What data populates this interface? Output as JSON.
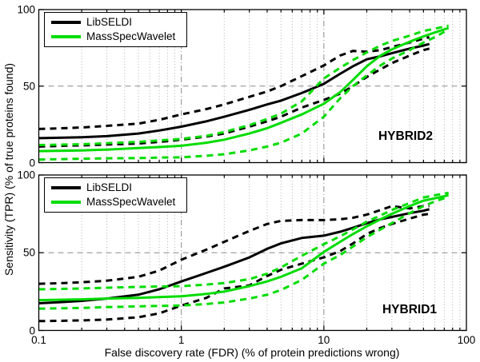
{
  "figure": {
    "xlabel": "False discovery rate (FDR) (% of protein predictions wrong)",
    "ylabel": "Sensitivity (TPR) (% of true proteins found)",
    "x_ticks": [
      "0.1",
      "1",
      "10",
      "100"
    ],
    "x_tick_values": [
      0.1,
      1,
      10,
      100
    ],
    "y_ticks": [
      "0",
      "50",
      "100"
    ],
    "y_tick_values": [
      0,
      50,
      100
    ],
    "colors": {
      "black_series": "#000000",
      "green_series": "#00dc00",
      "grid_minor": "#b0b0b0",
      "grid_major": "#8c8c8c",
      "axis": "#000000",
      "background": "#ffffff"
    }
  },
  "legend": {
    "items": [
      {
        "label": "LibSELDI",
        "color": "#000000"
      },
      {
        "label": "MassSpecWavelet",
        "color": "#00dc00"
      }
    ]
  },
  "chart_data": [
    {
      "type": "line",
      "panel_label": "HYBRID2",
      "x_scale": "log",
      "xlim": [
        0.1,
        100
      ],
      "ylim": [
        0,
        100
      ],
      "grid": "minor dotted vertical; dash-dot major vertical at 1 and 10; dashed horizontal at 50",
      "x_gridlines_major": [
        1,
        10
      ],
      "y_gridline_dashed": 50,
      "legend_position": "top-left",
      "series": [
        {
          "name": "LibSELDI mean",
          "color": "#000000",
          "dash": "solid",
          "x": [
            0.1,
            0.15,
            0.2,
            0.3,
            0.5,
            0.7,
            1,
            1.5,
            2,
            3,
            4,
            5,
            7,
            10,
            13,
            16,
            20,
            25,
            30,
            40,
            50,
            55
          ],
          "y": [
            16,
            16.3,
            16.6,
            17.3,
            19,
            21,
            23.5,
            27,
            30,
            34.5,
            38,
            40.5,
            45.5,
            51.5,
            58,
            63,
            67.5,
            69.5,
            71.5,
            74.5,
            76.5,
            77.5
          ]
        },
        {
          "name": "LibSELDI upper bound",
          "color": "#000000",
          "dash": "dashed",
          "x": [
            0.1,
            0.15,
            0.2,
            0.3,
            0.5,
            0.7,
            1,
            1.5,
            2,
            3,
            4,
            5,
            7,
            10,
            13,
            16,
            20,
            25,
            30,
            40,
            50,
            55
          ],
          "y": [
            22,
            22.5,
            23,
            24,
            25.5,
            28,
            31.5,
            35,
            38,
            43,
            46.5,
            50,
            56.5,
            63.5,
            70,
            73,
            72.5,
            73.5,
            75.5,
            78.5,
            81,
            82
          ]
        },
        {
          "name": "LibSELDI lower bound",
          "color": "#000000",
          "dash": "dashed",
          "x": [
            0.1,
            0.15,
            0.2,
            0.3,
            0.5,
            0.7,
            1,
            1.5,
            2,
            3,
            4,
            5,
            7,
            10,
            13,
            16,
            20,
            25,
            30,
            40,
            50,
            55
          ],
          "y": [
            10.5,
            11,
            11.3,
            11.8,
            12.5,
            13.5,
            15,
            17,
            19,
            23.5,
            27,
            30,
            36,
            41,
            45,
            50,
            56,
            61,
            65,
            70,
            73.5,
            74.5
          ]
        },
        {
          "name": "MassSpecWavelet mean",
          "color": "#00dc00",
          "dash": "solid",
          "x": [
            0.1,
            0.15,
            0.2,
            0.3,
            0.5,
            0.7,
            1,
            1.5,
            2,
            3,
            4,
            5,
            7,
            10,
            13,
            16,
            20,
            25,
            30,
            40,
            50,
            60,
            75
          ],
          "y": [
            7.5,
            7.8,
            8,
            8.5,
            9.5,
            10.2,
            11,
            13,
            15,
            19,
            22.5,
            26,
            31.5,
            38.5,
            46,
            54,
            63,
            70,
            74,
            79,
            82.5,
            85,
            88
          ]
        },
        {
          "name": "MassSpecWavelet upper bound",
          "color": "#00dc00",
          "dash": "dashed",
          "x": [
            0.1,
            0.15,
            0.2,
            0.3,
            0.5,
            0.7,
            1,
            1.5,
            2,
            3,
            4,
            5,
            7,
            10,
            13,
            16,
            20,
            25,
            30,
            40,
            50,
            60,
            75
          ],
          "y": [
            11.5,
            11.8,
            12,
            12.7,
            13.5,
            14.5,
            15.5,
            17.5,
            20,
            24.5,
            28.5,
            32,
            40,
            55,
            62,
            67,
            72,
            76.5,
            79.5,
            83,
            86,
            87.5,
            89.5
          ]
        },
        {
          "name": "MassSpecWavelet lower bound",
          "color": "#00dc00",
          "dash": "dashed",
          "x": [
            0.1,
            0.15,
            0.2,
            0.3,
            0.5,
            0.7,
            1,
            1.5,
            2,
            3,
            4,
            5,
            7,
            10,
            13,
            16,
            20,
            25,
            30,
            40,
            50,
            60,
            75
          ],
          "y": [
            2,
            2.3,
            2.5,
            2.8,
            3,
            3.3,
            3.5,
            4.5,
            5.5,
            8,
            10.5,
            13,
            19,
            30,
            42,
            50,
            57,
            63.5,
            68,
            73.5,
            78.5,
            82,
            87
          ]
        }
      ]
    },
    {
      "type": "line",
      "panel_label": "HYBRID1",
      "x_scale": "log",
      "xlim": [
        0.1,
        100
      ],
      "ylim": [
        0,
        100
      ],
      "grid": "minor dotted vertical; dash-dot major vertical at 1 and 10; dashed horizontal at 50",
      "x_gridlines_major": [
        1,
        10
      ],
      "y_gridline_dashed": 50,
      "legend_position": "top-left",
      "series": [
        {
          "name": "LibSELDI mean",
          "color": "#000000",
          "dash": "solid",
          "x": [
            0.1,
            0.15,
            0.2,
            0.3,
            0.5,
            0.7,
            1,
            1.5,
            2,
            3,
            4,
            5,
            7,
            10,
            13,
            16,
            20,
            25,
            30,
            40,
            50,
            55
          ],
          "y": [
            17.5,
            18.3,
            19,
            20.5,
            23,
            26.5,
            31.5,
            37,
            41,
            47,
            52.5,
            56,
            59.5,
            61,
            63.5,
            66,
            69,
            71.5,
            73,
            75.5,
            77,
            78
          ]
        },
        {
          "name": "LibSELDI upper bound",
          "color": "#000000",
          "dash": "dashed",
          "x": [
            0.1,
            0.15,
            0.2,
            0.3,
            0.5,
            0.7,
            1,
            1.5,
            2,
            3,
            4,
            5,
            7,
            10,
            13,
            16,
            20,
            25,
            30,
            40,
            50,
            55
          ],
          "y": [
            30,
            30.5,
            31,
            32,
            34.5,
            38.5,
            45.5,
            52,
            57,
            64,
            68.5,
            70.5,
            71,
            71,
            71.5,
            72.5,
            74.5,
            77.5,
            80,
            78.5,
            80,
            80
          ]
        },
        {
          "name": "LibSELDI lower bound",
          "color": "#000000",
          "dash": "dashed",
          "x": [
            0.1,
            0.15,
            0.2,
            0.3,
            0.5,
            0.7,
            1,
            1.5,
            2,
            3,
            4,
            5,
            7,
            10,
            13,
            16,
            20,
            25,
            30,
            40,
            50,
            55
          ],
          "y": [
            6,
            6.2,
            6.5,
            7,
            8.5,
            11,
            16,
            21,
            27,
            29,
            35,
            39,
            43,
            47,
            51,
            56,
            62,
            66,
            68.5,
            72,
            74.5,
            75
          ]
        },
        {
          "name": "MassSpecWavelet mean",
          "color": "#00dc00",
          "dash": "solid",
          "x": [
            0.1,
            0.15,
            0.2,
            0.3,
            0.5,
            0.7,
            1,
            1.5,
            2,
            3,
            4,
            5,
            7,
            10,
            13,
            16,
            20,
            25,
            30,
            40,
            50,
            60,
            75
          ],
          "y": [
            19.5,
            19.8,
            20,
            20.5,
            21,
            21.5,
            22,
            23.5,
            25,
            28.5,
            31.5,
            34.5,
            40,
            50.5,
            57,
            62,
            67,
            71.5,
            75,
            80,
            83.5,
            85,
            87
          ]
        },
        {
          "name": "MassSpecWavelet upper bound",
          "color": "#00dc00",
          "dash": "dashed",
          "x": [
            0.1,
            0.15,
            0.2,
            0.3,
            0.5,
            0.7,
            1,
            1.5,
            2,
            3,
            4,
            5,
            7,
            10,
            13,
            16,
            20,
            25,
            30,
            40,
            50,
            60,
            75
          ],
          "y": [
            26.5,
            26.8,
            27,
            27.5,
            28,
            28.3,
            28.5,
            29.5,
            30.5,
            33,
            36.5,
            40.5,
            48,
            55.5,
            60.5,
            65,
            70,
            74,
            77.5,
            82,
            85.5,
            87,
            88.5
          ]
        },
        {
          "name": "MassSpecWavelet lower bound",
          "color": "#00dc00",
          "dash": "dashed",
          "x": [
            0.1,
            0.15,
            0.2,
            0.3,
            0.5,
            0.7,
            1,
            1.5,
            2,
            3,
            4,
            5,
            7,
            10,
            13,
            16,
            20,
            25,
            30,
            40,
            50,
            60,
            75
          ],
          "y": [
            14,
            14.3,
            14.5,
            15,
            15.5,
            15.8,
            16,
            17,
            18,
            20.5,
            23,
            26,
            32.5,
            43,
            48.5,
            54,
            60,
            65,
            69,
            75.5,
            80,
            83,
            86
          ]
        }
      ]
    }
  ]
}
